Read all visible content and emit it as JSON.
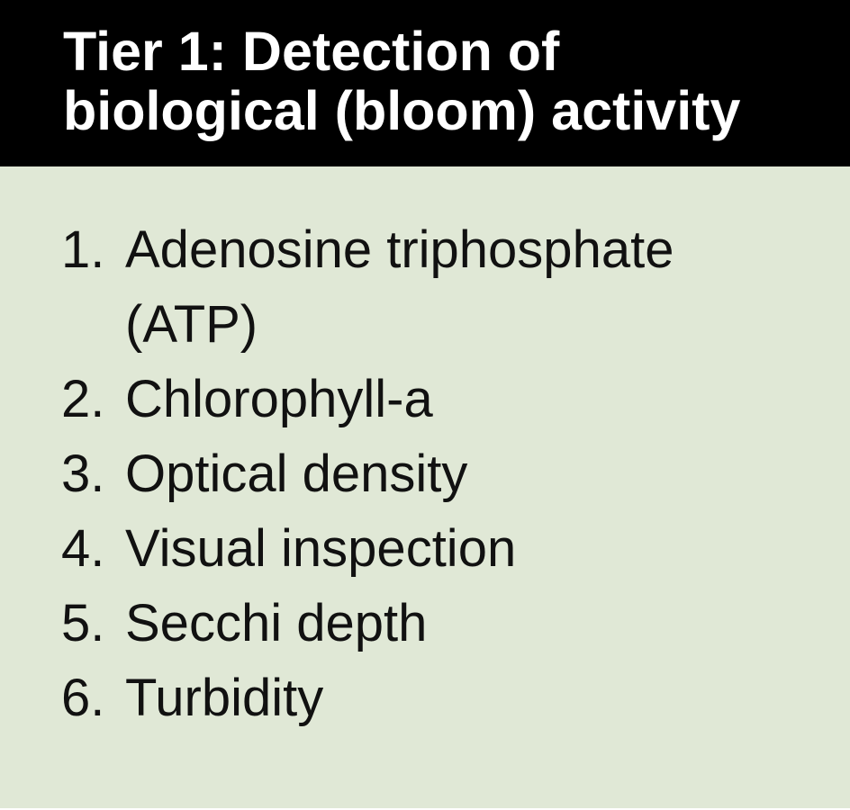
{
  "title": {
    "line1": "Tier 1: Detection of",
    "line2": "biological (bloom) activity"
  },
  "items": [
    {
      "number": "1.",
      "text": "Adenosine triphosphate (ATP)"
    },
    {
      "number": "2.",
      "text": "Chlorophyll-a"
    },
    {
      "number": "3.",
      "text": "Optical density"
    },
    {
      "number": "4.",
      "text": "Visual inspection"
    },
    {
      "number": "5.",
      "text": "Secchi depth"
    },
    {
      "number": "6.",
      "text": "Turbidity"
    }
  ],
  "colors": {
    "header_background": "#000000",
    "header_text": "#ffffff",
    "panel_background": "#e0e8d6",
    "body_text": "#111111"
  }
}
